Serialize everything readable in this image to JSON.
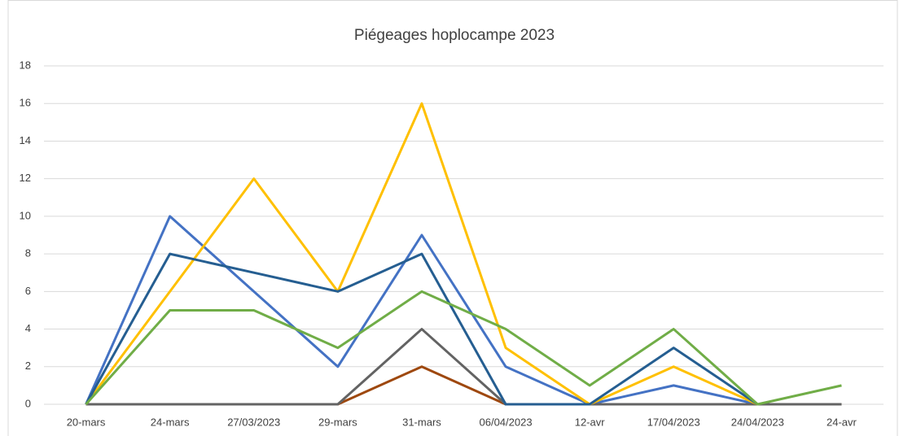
{
  "chart_data": {
    "type": "line",
    "title": "Piégeages hoplocampe 2023",
    "categories": [
      "20-mars",
      "24-mars",
      "27/03/2023",
      "29-mars",
      "31-mars",
      "06/04/2023",
      "12-avr",
      "17/04/2023",
      "24/04/2023",
      "24-avr"
    ],
    "series": [
      {
        "color": "#4472c4",
        "values": [
          0,
          10,
          6,
          2,
          9,
          2,
          0,
          1,
          0,
          null
        ]
      },
      {
        "color": "#9e480e",
        "values": [
          0,
          0,
          0,
          0,
          2,
          0,
          0,
          0,
          0,
          0
        ]
      },
      {
        "color": "#636363",
        "values": [
          0,
          0,
          0,
          0,
          4,
          0,
          0,
          0,
          0,
          0
        ]
      },
      {
        "color": "#ffc000",
        "values": [
          0,
          6,
          12,
          6,
          16,
          3,
          0,
          2,
          0,
          null
        ]
      },
      {
        "color": "#255e91",
        "values": [
          0,
          8,
          7,
          6,
          8,
          0,
          0,
          3,
          0,
          null
        ]
      },
      {
        "color": "#70ad47",
        "values": [
          0,
          5,
          5,
          3,
          6,
          4,
          1,
          4,
          0,
          1
        ]
      }
    ],
    "ylim": [
      0,
      18
    ],
    "yticks": [
      0,
      2,
      4,
      6,
      8,
      10,
      12,
      14,
      16,
      18
    ],
    "grid": true
  }
}
